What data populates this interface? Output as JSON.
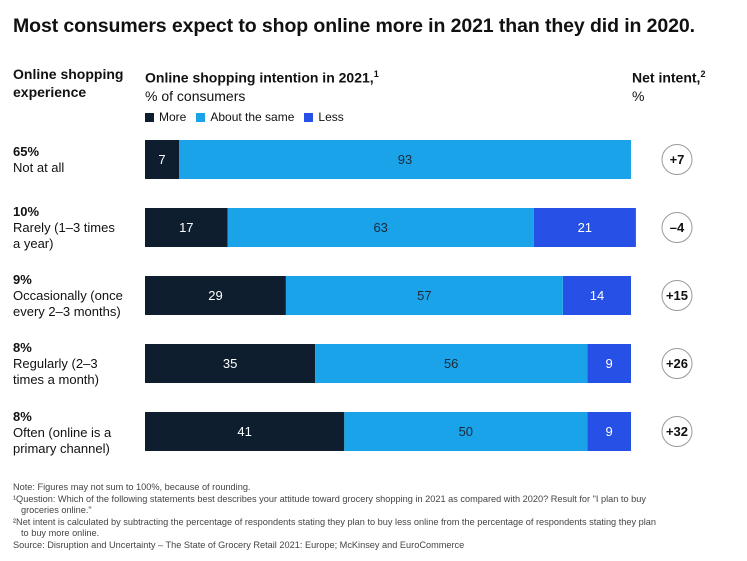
{
  "title": "Most consumers expect to shop online more in 2021 than they did in 2020.",
  "headers": {
    "experience_line1": "Online shopping",
    "experience_line2": "experience",
    "intention_title": "Online shopping intention in 2021,",
    "intention_sup": "1",
    "intention_sub": "% of consumers",
    "net_title": "Net intent,",
    "net_sup": "2",
    "net_sub": "%"
  },
  "legend": [
    {
      "label": "More",
      "color": "#0e1e2f"
    },
    {
      "label": "About the same",
      "color": "#1aa3e8"
    },
    {
      "label": "Less",
      "color": "#2750e6"
    }
  ],
  "rows": [
    {
      "pct": "65%",
      "label_lines": [
        "Not at all"
      ]
    },
    {
      "pct": "10%",
      "label_lines": [
        "Rarely (1–3 times",
        "a year)"
      ]
    },
    {
      "pct": "9%",
      "label_lines": [
        "Occasionally (once",
        "every 2–3 months)"
      ]
    },
    {
      "pct": "8%",
      "label_lines": [
        "Regularly (2–3",
        "times a month)"
      ]
    },
    {
      "pct": "8%",
      "label_lines": [
        "Often (online is a",
        "primary channel)"
      ]
    }
  ],
  "chart_data": {
    "type": "bar",
    "orientation": "horizontal",
    "stacked": true,
    "categories": [
      "Not at all",
      "Rarely (1–3 times a year)",
      "Occasionally (once every 2–3 months)",
      "Regularly (2–3 times a month)",
      "Often (online is a primary channel)"
    ],
    "series": [
      {
        "name": "More",
        "values": [
          7,
          17,
          29,
          35,
          41
        ],
        "labels": [
          "7",
          "17",
          "29",
          "35",
          "41"
        ],
        "color": "#0e1e2f",
        "label_color": "#ffffff"
      },
      {
        "name": "About the same",
        "values": [
          93,
          63,
          57,
          56,
          50
        ],
        "labels": [
          "93",
          "63",
          "57",
          "56",
          "50"
        ],
        "color": "#1aa3e8",
        "label_color": "#1a2a3a"
      },
      {
        "name": "Less",
        "values": [
          0,
          21,
          14,
          9,
          9
        ],
        "labels": [
          "",
          "21",
          "14",
          "9",
          "9"
        ],
        "color": "#2750e6",
        "label_color": "#ffffff"
      }
    ],
    "net_intent": [
      {
        "value": 7,
        "label": "+7"
      },
      {
        "value": -4,
        "label": "–4"
      },
      {
        "value": 15,
        "label": "+15"
      },
      {
        "value": 26,
        "label": "+26"
      },
      {
        "value": 32,
        "label": "+32"
      }
    ],
    "xlim": [
      0,
      100
    ],
    "legend_position": "top-left"
  },
  "notes": [
    "Note: Figures may not sum to 100%, because of rounding.",
    "¹Question: Which of the following statements best describes your attitude toward grocery shopping in 2021 as compared with 2020? Result for \"I plan to buy",
    "groceries online.\"",
    "²Net intent is calculated by subtracting the percentage of respondents stating they plan to buy less online from the percentage of respondents stating they plan",
    "to buy more online.",
    "Source: Disruption and Uncertainty – The State of Grocery Retail 2021: Europe; McKinsey and EuroCommerce"
  ]
}
